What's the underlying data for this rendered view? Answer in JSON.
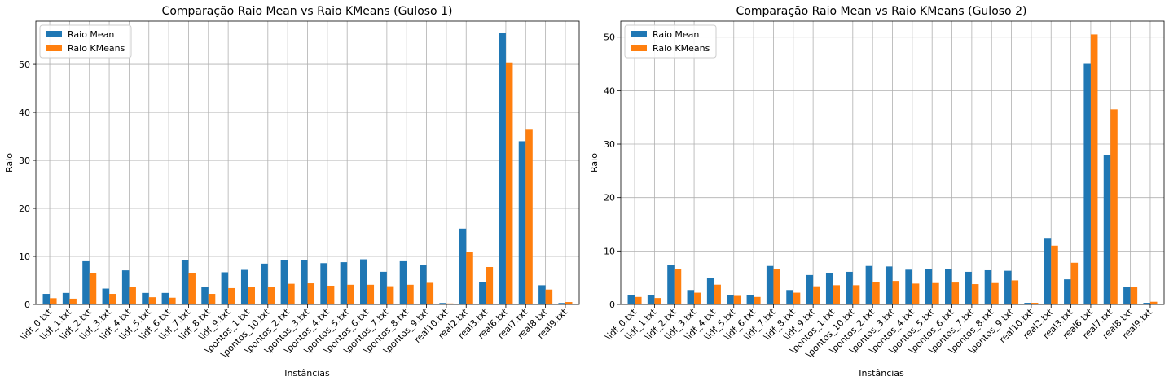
{
  "colors": {
    "mean": "#1f77b4",
    "kmeans": "#ff7f0e",
    "grid": "#b0b0b0"
  },
  "chart_data": [
    {
      "type": "bar",
      "title": "Comparação Raio Mean vs Raio KMeans (Guloso 1)",
      "xlabel": "Instâncias",
      "ylabel": "Raio",
      "ylim": [
        0,
        59
      ],
      "yticks": [
        0,
        10,
        20,
        30,
        40,
        50
      ],
      "grid": true,
      "legend": "top-left",
      "categories": [
        "\\idf_0.txt",
        "\\idf_1.txt",
        "\\idf_2.txt",
        "\\idf_3.txt",
        "\\idf_4.txt",
        "\\idf_5.txt",
        "\\idf_6.txt",
        "\\idf_7.txt",
        "\\idf_8.txt",
        "\\idf_9.txt",
        "\\pontos_1.txt",
        "\\pontos_10.txt",
        "\\pontos_2.txt",
        "\\pontos_3.txt",
        "\\pontos_4.txt",
        "\\pontos_5.txt",
        "\\pontos_6.txt",
        "\\pontos_7.txt",
        "\\pontos_8.txt",
        "\\pontos_9.txt",
        "real10.txt",
        "real2.txt",
        "real3.txt",
        "real6.txt",
        "real7.txt",
        "real8.txt",
        "real9.txt"
      ],
      "series": [
        {
          "name": "Raio Mean",
          "values": [
            2.2,
            2.4,
            9.0,
            3.3,
            7.1,
            2.4,
            2.4,
            9.2,
            3.6,
            6.7,
            7.2,
            8.5,
            9.2,
            9.3,
            8.6,
            8.8,
            9.4,
            6.8,
            9.0,
            8.3,
            0.3,
            15.8,
            4.7,
            56.6,
            34.0,
            4.0,
            0.3
          ]
        },
        {
          "name": "Raio KMeans",
          "values": [
            1.3,
            1.2,
            6.6,
            2.2,
            3.7,
            1.5,
            1.4,
            6.6,
            2.2,
            3.4,
            3.7,
            3.6,
            4.3,
            4.4,
            3.9,
            4.1,
            4.1,
            3.8,
            4.1,
            4.5,
            0.2,
            10.9,
            7.8,
            50.4,
            36.4,
            3.1,
            0.5
          ]
        }
      ]
    },
    {
      "type": "bar",
      "title": "Comparação Raio Mean vs Raio KMeans (Guloso 2)",
      "xlabel": "Instâncias",
      "ylabel": "Raio",
      "ylim": [
        0,
        53
      ],
      "yticks": [
        0,
        10,
        20,
        30,
        40,
        50
      ],
      "grid": true,
      "legend": "top-left",
      "categories": [
        "\\idf_0.txt",
        "\\idf_1.txt",
        "\\idf_2.txt",
        "\\idf_3.txt",
        "\\idf_4.txt",
        "\\idf_5.txt",
        "\\idf_6.txt",
        "\\idf_7.txt",
        "\\idf_8.txt",
        "\\idf_9.txt",
        "\\pontos_1.txt",
        "\\pontos_10.txt",
        "\\pontos_2.txt",
        "\\pontos_3.txt",
        "\\pontos_4.txt",
        "\\pontos_5.txt",
        "\\pontos_6.txt",
        "\\pontos_7.txt",
        "\\pontos_8.txt",
        "\\pontos_9.txt",
        "real10.txt",
        "real2.txt",
        "real3.txt",
        "real6.txt",
        "real7.txt",
        "real8.txt",
        "real9.txt"
      ],
      "series": [
        {
          "name": "Raio Mean",
          "values": [
            1.8,
            1.8,
            7.4,
            2.7,
            5.0,
            1.7,
            1.7,
            7.2,
            2.7,
            5.5,
            5.8,
            6.1,
            7.2,
            7.1,
            6.5,
            6.7,
            6.6,
            6.1,
            6.4,
            6.3,
            0.3,
            12.3,
            4.7,
            45.0,
            27.9,
            3.2,
            0.3
          ]
        },
        {
          "name": "Raio KMeans",
          "values": [
            1.4,
            1.2,
            6.6,
            2.2,
            3.7,
            1.6,
            1.4,
            6.6,
            2.2,
            3.4,
            3.6,
            3.6,
            4.2,
            4.4,
            3.9,
            4.0,
            4.1,
            3.8,
            4.0,
            4.5,
            0.3,
            11.0,
            7.8,
            50.5,
            36.5,
            3.2,
            0.5
          ]
        }
      ]
    }
  ]
}
